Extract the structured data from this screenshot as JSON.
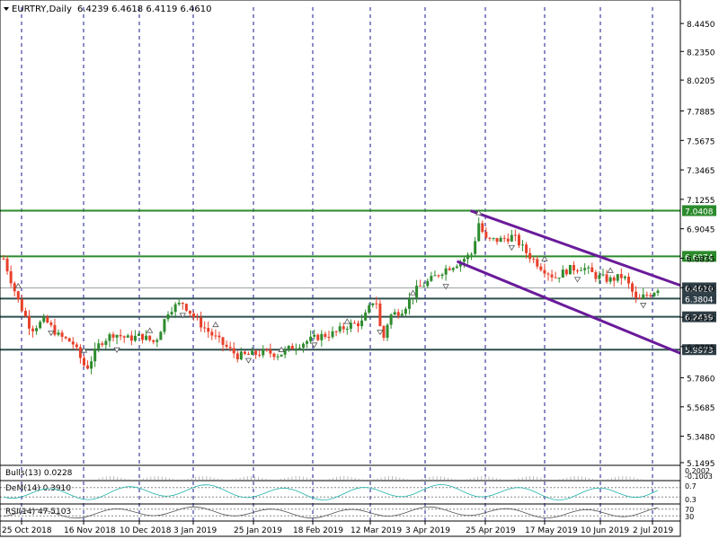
{
  "header": {
    "symbol": "EURTRY,Daily",
    "ohlc": "6.4239 6.4618 6.4119 6.4610"
  },
  "colors": {
    "bull": "#2e8b2e",
    "bear": "#e8402a",
    "level_line": "#2b8a2b",
    "level_dark_line": "#2f4f4f",
    "channel": "#6a1b9a",
    "grid": "#1a1a8c",
    "dem_line": "#20b2aa",
    "label_bg_dark": "#2f3e46",
    "label_bg_green": "#2b8a2b"
  },
  "chart_data": {
    "type": "candlestick",
    "symbol": "EURTRY",
    "timeframe": "Daily",
    "last": {
      "open": 6.4239,
      "high": 6.4618,
      "low": 6.4119,
      "close": 6.461
    },
    "ylim": [
      5.1495,
      8.5
    ],
    "y_ticks": [
      "8.4450",
      "8.2350",
      "8.0205",
      "7.7885",
      "7.5675",
      "7.3465",
      "7.1255",
      "6.9045",
      "6.6835",
      "6.4625",
      "6.2415",
      "6.0205",
      "5.7860",
      "5.5685",
      "5.3480",
      "5.1495"
    ],
    "x_ticks": [
      "25 Oct 2018",
      "16 Nov 2018",
      "10 Dec 2018",
      "3 Jan 2019",
      "25 Jan 2019",
      "18 Feb 2019",
      "12 Mar 2019",
      "3 Apr 2019",
      "25 Apr 2019",
      "17 May 2019",
      "10 Jun 2019",
      "2 Jul 2019"
    ],
    "vertical_grid_at": [
      "25 Oct 2018",
      "16 Nov 2018",
      "10 Dec 2018",
      "3 Jan 2019",
      "25 Jan 2019",
      "18 Feb 2019",
      "12 Mar 2019",
      "3 Apr 2019",
      "25 Apr 2019",
      "17 May 2019",
      "10 Jun 2019",
      "2 Jul 2019"
    ],
    "levels": [
      {
        "value": 7.0408,
        "label": "7.0408",
        "style": "green"
      },
      {
        "value": 6.6974,
        "label": "6.6974",
        "style": "green"
      },
      {
        "value": 6.461,
        "label": "6.4610",
        "style": "price"
      },
      {
        "value": 6.3804,
        "label": "6.3804",
        "style": "dark"
      },
      {
        "value": 6.2439,
        "label": "6.2439",
        "style": "dark"
      },
      {
        "value": 5.9973,
        "label": "5.9973",
        "style": "dark"
      }
    ],
    "channel": {
      "upper": [
        [
          0.69,
          7.04
        ],
        [
          1.0,
          6.48
        ]
      ],
      "lower": [
        [
          0.67,
          6.66
        ],
        [
          1.0,
          5.97
        ]
      ]
    },
    "price_path": [
      [
        0.0,
        6.68
      ],
      [
        0.02,
        6.38
      ],
      [
        0.04,
        6.15
      ],
      [
        0.06,
        6.22
      ],
      [
        0.08,
        6.1
      ],
      [
        0.1,
        6.05
      ],
      [
        0.12,
        5.85
      ],
      [
        0.14,
        6.05
      ],
      [
        0.16,
        6.12
      ],
      [
        0.18,
        6.08
      ],
      [
        0.2,
        6.1
      ],
      [
        0.22,
        6.05
      ],
      [
        0.24,
        6.3
      ],
      [
        0.26,
        6.35
      ],
      [
        0.28,
        6.22
      ],
      [
        0.3,
        6.12
      ],
      [
        0.32,
        6.03
      ],
      [
        0.34,
        5.95
      ],
      [
        0.36,
        5.96
      ],
      [
        0.38,
        5.98
      ],
      [
        0.4,
        5.96
      ],
      [
        0.42,
        6.02
      ],
      [
        0.44,
        6.06
      ],
      [
        0.46,
        6.1
      ],
      [
        0.48,
        6.12
      ],
      [
        0.5,
        6.18
      ],
      [
        0.52,
        6.2
      ],
      [
        0.54,
        6.4
      ],
      [
        0.55,
        6.05
      ],
      [
        0.56,
        6.25
      ],
      [
        0.58,
        6.3
      ],
      [
        0.6,
        6.45
      ],
      [
        0.62,
        6.52
      ],
      [
        0.64,
        6.6
      ],
      [
        0.66,
        6.65
      ],
      [
        0.68,
        6.72
      ],
      [
        0.69,
        6.95
      ],
      [
        0.7,
        6.82
      ],
      [
        0.72,
        6.82
      ],
      [
        0.74,
        6.85
      ],
      [
        0.76,
        6.72
      ],
      [
        0.78,
        6.62
      ],
      [
        0.8,
        6.54
      ],
      [
        0.82,
        6.6
      ],
      [
        0.84,
        6.62
      ],
      [
        0.86,
        6.55
      ],
      [
        0.88,
        6.52
      ],
      [
        0.9,
        6.55
      ],
      [
        0.91,
        6.46
      ],
      [
        0.92,
        6.35
      ],
      [
        0.93,
        6.4
      ],
      [
        0.94,
        6.42
      ],
      [
        0.95,
        6.46
      ]
    ],
    "indicators": [
      {
        "name": "Bulls(13)",
        "label": "Bulls(13) 0.0228",
        "value": 0.0228,
        "levels": [
          "0.2002",
          "-0.1003"
        ]
      },
      {
        "name": "DeM(14)",
        "label": "DeM(14) 0.3910",
        "value": 0.391,
        "levels": [
          "0.7",
          "0.3"
        ]
      },
      {
        "name": "RSI(14)",
        "label": "RSI(14) 47.5103",
        "value": 47.5103,
        "levels": [
          "70",
          "30"
        ]
      }
    ]
  }
}
